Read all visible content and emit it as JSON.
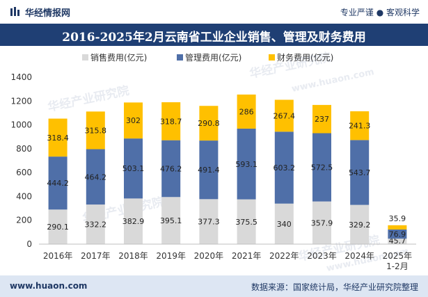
{
  "header": {
    "brand": "华经情报网",
    "slogan": "专业严谨 ● 客观科学"
  },
  "footer": {
    "site": "www.huaon.com",
    "source": "数据来源：国家统计局，华经产业研究院整理"
  },
  "watermark": {
    "cn": "华经产业研究院",
    "url": "www.huaon.com"
  },
  "chart_data": {
    "type": "bar",
    "stacked": true,
    "title": "2016-2025年2月云南省工业企业销售、管理及财务费用",
    "categories": [
      "2016年",
      "2017年",
      "2018年",
      "2019年",
      "2020年",
      "2021年",
      "2022年",
      "2023年",
      "2024年",
      "2025年\n1-2月"
    ],
    "series": [
      {
        "name": "销售费用(亿元)",
        "color": "#d9d9d9",
        "values": [
          290.1,
          332.2,
          382.9,
          395.1,
          377.3,
          375.5,
          340,
          357.9,
          329.2,
          45.7
        ]
      },
      {
        "name": "管理费用(亿元)",
        "color": "#4f6fa8",
        "values": [
          444.2,
          464.2,
          503.1,
          476.2,
          491.4,
          593.1,
          603.2,
          572.5,
          543.7,
          76.9
        ]
      },
      {
        "name": "财务费用(亿元)",
        "color": "#ffc000",
        "values": [
          318.4,
          315.8,
          302,
          318.7,
          290.8,
          286,
          267.4,
          237,
          241.3,
          35.9
        ]
      }
    ],
    "ylim": [
      0,
      1400
    ],
    "yticks": [
      0,
      200,
      400,
      600,
      800,
      1000,
      1200,
      1400
    ],
    "xlabel": "",
    "ylabel": "",
    "legend": "top-center",
    "grid": false
  }
}
